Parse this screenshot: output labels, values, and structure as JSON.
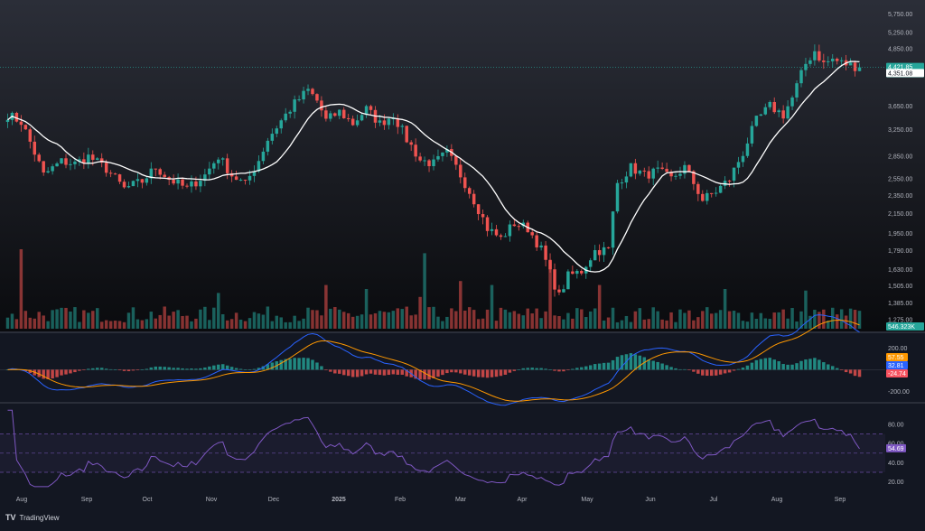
{
  "brand": {
    "name": "TradingView",
    "mark": "TV"
  },
  "colors": {
    "background_top": "#2b2e38",
    "background_bottom": "#0a0b0e",
    "panel_bg": "#131722",
    "up": "#26a69a",
    "down": "#ef5350",
    "ma": "#ffffff",
    "macd_line": "#2962ff",
    "signal_line": "#ff9800",
    "rsi_line": "#7e57c2",
    "rsi_band": "#7e57c2",
    "axis_text": "#b2b5be"
  },
  "chart_data": [
    {
      "type": "candlestick",
      "panel": "price",
      "y_ticks": [
        "5,750.00",
        "5,250.00",
        "4,850.00",
        "4,421.85",
        "4,351.08",
        "3,650.00",
        "3,250.00",
        "2,850.00",
        "2,550.00",
        "2,350.00",
        "2,150.00",
        "1,950.00",
        "1,790.00",
        "1,630.00",
        "1,505.00",
        "1,385.00",
        "1,275.00"
      ],
      "y_tick_values": [
        5750,
        5250,
        4850,
        3650,
        3250,
        2850,
        2550,
        2350,
        2150,
        1950,
        1790,
        1630,
        1505,
        1385,
        1275
      ],
      "ylim": [
        1230,
        6000
      ],
      "scale": "log",
      "x_ticks": [
        "Aug",
        "Sep",
        "Oct",
        "Nov",
        "Dec",
        "2025",
        "Feb",
        "Mar",
        "Apr",
        "May",
        "Jun",
        "Jul",
        "Aug",
        "Sep"
      ],
      "last_price": "4,421.85",
      "countdown": "14:48:31",
      "ma_value": "4,351.08",
      "volume_label": "546.323K",
      "anchors": [
        [
          0,
          3500
        ],
        [
          3,
          3380
        ],
        [
          6,
          2900
        ],
        [
          8,
          2600
        ],
        [
          12,
          2780
        ],
        [
          15,
          2750
        ],
        [
          18,
          2850
        ],
        [
          22,
          2680
        ],
        [
          26,
          2430
        ],
        [
          30,
          2520
        ],
        [
          33,
          2700
        ],
        [
          36,
          2550
        ],
        [
          40,
          2430
        ],
        [
          44,
          2600
        ],
        [
          47,
          2850
        ],
        [
          50,
          2600
        ],
        [
          53,
          2480
        ],
        [
          56,
          2800
        ],
        [
          58,
          3100
        ],
        [
          61,
          3400
        ],
        [
          64,
          3700
        ],
        [
          67,
          3950
        ],
        [
          69,
          3750
        ],
        [
          71,
          3400
        ],
        [
          74,
          3550
        ],
        [
          77,
          3350
        ],
        [
          80,
          3600
        ],
        [
          83,
          3350
        ],
        [
          86,
          3500
        ],
        [
          89,
          3100
        ],
        [
          92,
          2800
        ],
        [
          95,
          2750
        ],
        [
          98,
          2900
        ],
        [
          101,
          2600
        ],
        [
          104,
          2300
        ],
        [
          107,
          2000
        ],
        [
          110,
          1900
        ],
        [
          113,
          2050
        ],
        [
          116,
          2000
        ],
        [
          119,
          1800
        ],
        [
          121,
          1600
        ],
        [
          123,
          1430
        ],
        [
          125,
          1580
        ],
        [
          128,
          1620
        ],
        [
          131,
          1790
        ],
        [
          134,
          1800
        ],
        [
          136,
          2500
        ],
        [
          139,
          2700
        ],
        [
          142,
          2600
        ],
        [
          145,
          2650
        ],
        [
          148,
          2550
        ],
        [
          151,
          2700
        ],
        [
          153,
          2500
        ],
        [
          155,
          2300
        ],
        [
          158,
          2400
        ],
        [
          161,
          2550
        ],
        [
          164,
          2900
        ],
        [
          167,
          3400
        ],
        [
          170,
          3650
        ],
        [
          173,
          3500
        ],
        [
          175,
          3800
        ],
        [
          178,
          4500
        ],
        [
          180,
          4800
        ],
        [
          182,
          4500
        ],
        [
          184,
          4600
        ],
        [
          186,
          4520
        ],
        [
          190,
          4421
        ]
      ],
      "volume_spikes": [
        [
          3,
          1.0
        ],
        [
          47,
          0.45
        ],
        [
          71,
          0.55
        ],
        [
          80,
          0.5
        ],
        [
          92,
          0.4
        ],
        [
          93,
          0.95
        ],
        [
          101,
          0.6
        ],
        [
          108,
          0.55
        ],
        [
          121,
          0.85
        ],
        [
          132,
          0.55
        ],
        [
          160,
          0.5
        ],
        [
          178,
          0.48
        ]
      ]
    },
    {
      "type": "macd",
      "panel": "macd",
      "y_ticks": [
        "200.00",
        "57.55",
        "32.81",
        "-24.74",
        "-200.00"
      ],
      "ylim": [
        -270,
        310
      ]
    },
    {
      "type": "rsi",
      "panel": "rsi",
      "y_ticks": [
        "80.00",
        "60.00",
        "54.69",
        "40.00",
        "20.00"
      ],
      "y_tick_values": [
        80,
        60,
        40,
        20
      ],
      "ylim": [
        13,
        98
      ],
      "bands": [
        70,
        50,
        30
      ],
      "last_value": 54.69
    }
  ]
}
